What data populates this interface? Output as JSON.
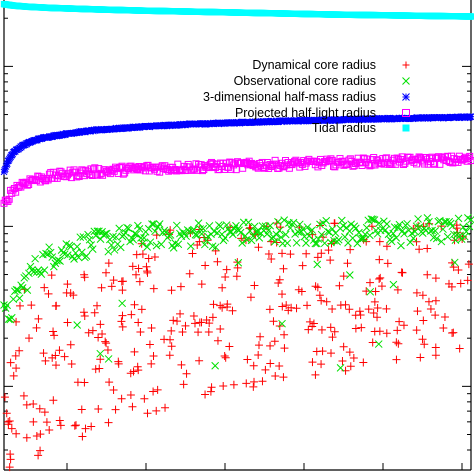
{
  "chart_data": {
    "type": "scatter",
    "title": "",
    "xlabel": "",
    "ylabel": "",
    "x_scale": "linear",
    "y_scale": "log",
    "xlim": [
      0,
      1
    ],
    "ylim": [
      0.03,
      26
    ],
    "grid": false,
    "legend_position": "top-right",
    "series": [
      {
        "name": "Dynamical core radius",
        "marker": "plus",
        "color": "#ff0000",
        "x": [
          0.01,
          0.02,
          0.03,
          0.04,
          0.05,
          0.06,
          0.07,
          0.08,
          0.09,
          0.1,
          0.11,
          0.12,
          0.14,
          0.16,
          0.18,
          0.2,
          0.22,
          0.25,
          0.28,
          0.3,
          0.33,
          0.36,
          0.4,
          0.43,
          0.46,
          0.5,
          0.53,
          0.56,
          0.6,
          0.63,
          0.66,
          0.7,
          0.73,
          0.76,
          0.8,
          0.83,
          0.86,
          0.9,
          0.93,
          0.96,
          0.99
        ],
        "y": [
          0.07,
          0.05,
          0.09,
          0.06,
          0.12,
          0.08,
          0.1,
          0.15,
          0.07,
          0.13,
          0.2,
          0.09,
          0.17,
          0.25,
          0.11,
          0.3,
          0.14,
          0.22,
          0.4,
          0.12,
          0.28,
          0.18,
          0.35,
          0.1,
          0.5,
          0.24,
          0.16,
          0.45,
          0.3,
          0.13,
          0.6,
          0.21,
          0.38,
          0.09,
          0.55,
          0.27,
          0.19,
          0.7,
          0.33,
          0.15,
          0.42
        ]
      },
      {
        "name": "Observational core radius",
        "marker": "cross",
        "color": "#00e000",
        "x": [
          0.01,
          0.02,
          0.03,
          0.04,
          0.05,
          0.06,
          0.07,
          0.08,
          0.09,
          0.1,
          0.12,
          0.14,
          0.16,
          0.18,
          0.2,
          0.23,
          0.26,
          0.3,
          0.34,
          0.38,
          0.42,
          0.46,
          0.5,
          0.55,
          0.6,
          0.65,
          0.7,
          0.75,
          0.8,
          0.85,
          0.9,
          0.95,
          0.99
        ],
        "y": [
          0.28,
          0.32,
          0.38,
          0.42,
          0.48,
          0.52,
          0.56,
          0.6,
          0.62,
          0.66,
          0.7,
          0.72,
          0.75,
          0.78,
          0.8,
          0.83,
          0.85,
          0.88,
          0.9,
          0.86,
          0.92,
          0.89,
          0.93,
          0.9,
          0.95,
          0.88,
          0.96,
          0.91,
          0.97,
          0.9,
          0.98,
          0.93,
          0.99
        ]
      },
      {
        "name": "3-dimensional half-mass radius",
        "marker": "star",
        "color": "#0000ff",
        "x": [
          0.0,
          0.01,
          0.02,
          0.04,
          0.06,
          0.08,
          0.1,
          0.15,
          0.2,
          0.25,
          0.3,
          0.4,
          0.5,
          0.6,
          0.7,
          0.8,
          0.9,
          1.0
        ],
        "y": [
          2.2,
          2.6,
          2.9,
          3.2,
          3.4,
          3.55,
          3.65,
          3.85,
          4.0,
          4.1,
          4.2,
          4.35,
          4.45,
          4.55,
          4.62,
          4.7,
          4.76,
          4.82
        ]
      },
      {
        "name": "Projected half-light radius",
        "marker": "square",
        "color": "#ff00ff",
        "x": [
          0.0,
          0.01,
          0.02,
          0.04,
          0.06,
          0.08,
          0.1,
          0.15,
          0.2,
          0.25,
          0.3,
          0.4,
          0.5,
          0.6,
          0.7,
          0.8,
          0.9,
          1.0
        ],
        "y": [
          1.35,
          1.55,
          1.7,
          1.85,
          1.95,
          2.0,
          2.05,
          2.15,
          2.2,
          2.25,
          2.3,
          2.35,
          2.4,
          2.45,
          2.5,
          2.55,
          2.58,
          2.62
        ]
      },
      {
        "name": "Tidal radius",
        "marker": "filled-square",
        "color": "#00ffff",
        "x": [
          0.0,
          0.02,
          0.05,
          0.1,
          0.2,
          0.3,
          0.4,
          0.5,
          0.6,
          0.7,
          0.8,
          0.9,
          1.0
        ],
        "y": [
          24.5,
          24.0,
          23.6,
          23.2,
          22.7,
          22.3,
          22.0,
          21.7,
          21.4,
          21.1,
          20.9,
          20.7,
          20.5
        ]
      }
    ]
  }
}
